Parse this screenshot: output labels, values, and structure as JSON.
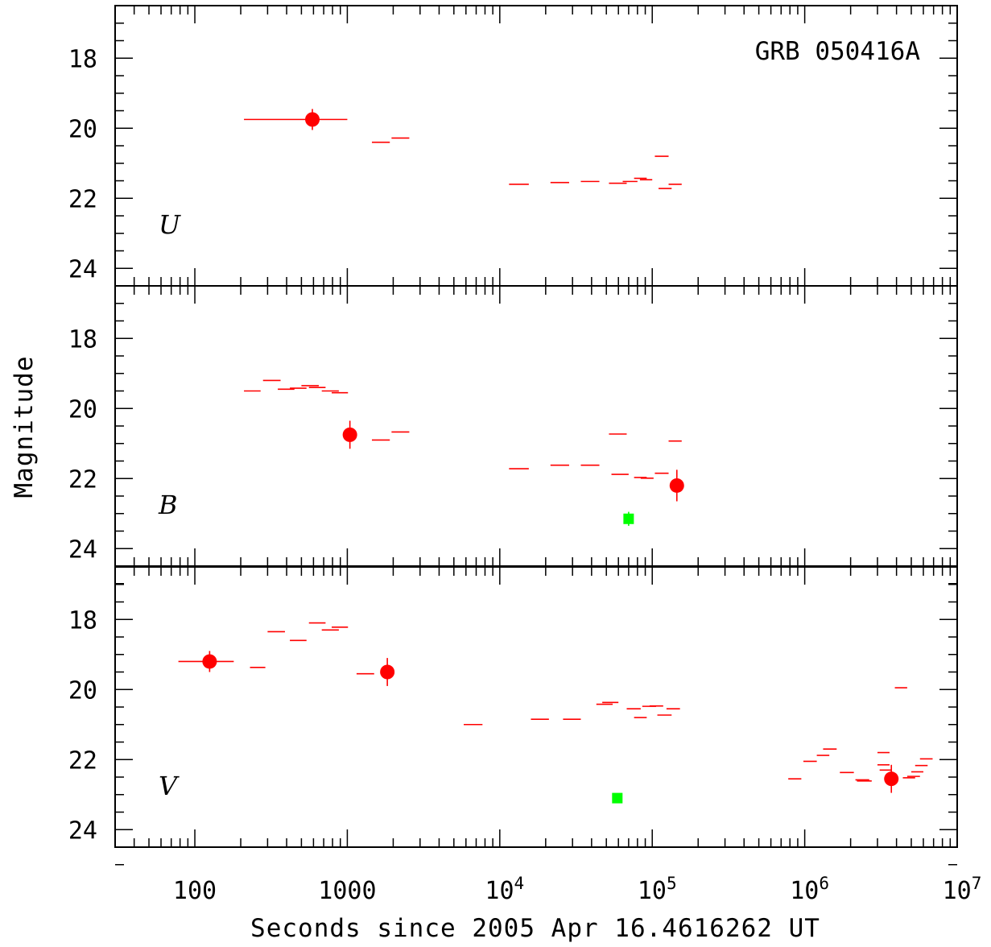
{
  "chart_data": {
    "type": "scatter",
    "title": "GRB 050416A",
    "xlabel": "Seconds since 2005 Apr 16.4616262 UT",
    "ylabel": "Magnitude",
    "x_scale": "log",
    "xlim": [
      30,
      10000000
    ],
    "x_tick_labels": [
      {
        "value": 100,
        "label": "100"
      },
      {
        "value": 1000,
        "label": "1000"
      },
      {
        "value": 10000,
        "base": "10",
        "exp": "4"
      },
      {
        "value": 100000,
        "base": "10",
        "exp": "5"
      },
      {
        "value": 1000000,
        "base": "10",
        "exp": "6"
      },
      {
        "value": 10000000,
        "base": "10",
        "exp": "7"
      }
    ],
    "y_inverted": true,
    "ylim": [
      16.5,
      24.5
    ],
    "y_ticks": [
      18,
      20,
      22,
      24
    ],
    "colors": {
      "upper_limit": "#ff0000",
      "detection": "#ff0000",
      "reference": "#00ff00",
      "axes": "#000000"
    },
    "panels": [
      {
        "band": "U",
        "detections": [
          {
            "t": 590,
            "t_lo": 210,
            "t_hi": 1000,
            "mag": 19.75,
            "err": 0.3
          }
        ],
        "upper_limits": [
          {
            "t_lo": 1450,
            "t_hi": 1900,
            "mag": 20.4
          },
          {
            "t_lo": 1950,
            "t_hi": 2550,
            "mag": 20.28
          },
          {
            "t_lo": 11500,
            "t_hi": 15500,
            "mag": 21.6
          },
          {
            "t_lo": 21500,
            "t_hi": 28500,
            "mag": 21.55
          },
          {
            "t_lo": 34000,
            "t_hi": 45000,
            "mag": 21.52
          },
          {
            "t_lo": 52000,
            "t_hi": 68000,
            "mag": 21.57
          },
          {
            "t_lo": 64000,
            "t_hi": 80000,
            "mag": 21.52
          },
          {
            "t_lo": 76000,
            "t_hi": 92000,
            "mag": 21.43
          },
          {
            "t_lo": 83000,
            "t_hi": 100000,
            "mag": 21.47
          },
          {
            "t_lo": 104000,
            "t_hi": 128000,
            "mag": 20.8
          },
          {
            "t_lo": 110000,
            "t_hi": 134000,
            "mag": 21.72
          },
          {
            "t_lo": 128000,
            "t_hi": 156000,
            "mag": 21.6
          }
        ],
        "references": []
      },
      {
        "band": "B",
        "detections": [
          {
            "t": 1040,
            "t_lo": 1040,
            "t_hi": 1040,
            "mag": 20.75,
            "err": 0.4
          },
          {
            "t": 145000,
            "t_lo": 145000,
            "t_hi": 145000,
            "mag": 22.2,
            "err": 0.45
          }
        ],
        "upper_limits": [
          {
            "t_lo": 210,
            "t_hi": 270,
            "mag": 19.5
          },
          {
            "t_lo": 280,
            "t_hi": 365,
            "mag": 19.2
          },
          {
            "t_lo": 350,
            "t_hi": 450,
            "mag": 19.45
          },
          {
            "t_lo": 420,
            "t_hi": 540,
            "mag": 19.42
          },
          {
            "t_lo": 500,
            "t_hi": 650,
            "mag": 19.35
          },
          {
            "t_lo": 560,
            "t_hi": 720,
            "mag": 19.4
          },
          {
            "t_lo": 680,
            "t_hi": 880,
            "mag": 19.5
          },
          {
            "t_lo": 790,
            "t_hi": 1010,
            "mag": 19.55
          },
          {
            "t_lo": 1450,
            "t_hi": 1900,
            "mag": 20.9
          },
          {
            "t_lo": 1950,
            "t_hi": 2550,
            "mag": 20.67
          },
          {
            "t_lo": 11500,
            "t_hi": 15500,
            "mag": 21.72
          },
          {
            "t_lo": 21500,
            "t_hi": 28500,
            "mag": 21.62
          },
          {
            "t_lo": 34000,
            "t_hi": 45000,
            "mag": 21.62
          },
          {
            "t_lo": 52000,
            "t_hi": 68000,
            "mag": 20.73
          },
          {
            "t_lo": 54000,
            "t_hi": 70000,
            "mag": 21.88
          },
          {
            "t_lo": 76000,
            "t_hi": 92000,
            "mag": 21.97
          },
          {
            "t_lo": 84000,
            "t_hi": 102000,
            "mag": 21.99
          },
          {
            "t_lo": 104000,
            "t_hi": 128000,
            "mag": 21.85
          },
          {
            "t_lo": 128000,
            "t_hi": 156000,
            "mag": 20.93
          }
        ],
        "references": [
          {
            "t": 70000,
            "mag": 23.15,
            "err": 0.2
          }
        ]
      },
      {
        "band": "V",
        "detections": [
          {
            "t": 125,
            "t_lo": 78,
            "t_hi": 180,
            "mag": 19.2,
            "err": 0.3
          },
          {
            "t": 1830,
            "t_lo": 1830,
            "t_hi": 1830,
            "mag": 19.5,
            "err": 0.4
          },
          {
            "t": 3700000,
            "t_lo": 3700000,
            "t_hi": 3700000,
            "mag": 22.55,
            "err": 0.4
          }
        ],
        "upper_limits": [
          {
            "t_lo": 230,
            "t_hi": 290,
            "mag": 19.37
          },
          {
            "t_lo": 300,
            "t_hi": 390,
            "mag": 18.35
          },
          {
            "t_lo": 420,
            "t_hi": 540,
            "mag": 18.6
          },
          {
            "t_lo": 560,
            "t_hi": 720,
            "mag": 18.1
          },
          {
            "t_lo": 680,
            "t_hi": 880,
            "mag": 18.3
          },
          {
            "t_lo": 790,
            "t_hi": 1010,
            "mag": 18.22
          },
          {
            "t_lo": 1150,
            "t_hi": 1500,
            "mag": 19.55
          },
          {
            "t_lo": 5800,
            "t_hi": 7700,
            "mag": 21.0
          },
          {
            "t_lo": 16000,
            "t_hi": 21000,
            "mag": 20.85
          },
          {
            "t_lo": 26000,
            "t_hi": 34000,
            "mag": 20.85
          },
          {
            "t_lo": 43000,
            "t_hi": 55000,
            "mag": 20.42
          },
          {
            "t_lo": 47000,
            "t_hi": 60000,
            "mag": 20.37
          },
          {
            "t_lo": 68000,
            "t_hi": 84000,
            "mag": 20.55
          },
          {
            "t_lo": 76000,
            "t_hi": 92000,
            "mag": 20.8
          },
          {
            "t_lo": 86000,
            "t_hi": 106000,
            "mag": 20.48
          },
          {
            "t_lo": 96000,
            "t_hi": 118000,
            "mag": 20.47
          },
          {
            "t_lo": 108000,
            "t_hi": 134000,
            "mag": 20.73
          },
          {
            "t_lo": 124000,
            "t_hi": 152000,
            "mag": 20.55
          },
          {
            "t_lo": 780000,
            "t_hi": 950000,
            "mag": 22.55
          },
          {
            "t_lo": 980000,
            "t_hi": 1200000,
            "mag": 22.05
          },
          {
            "t_lo": 1200000,
            "t_hi": 1450000,
            "mag": 21.88
          },
          {
            "t_lo": 1320000,
            "t_hi": 1620000,
            "mag": 21.7
          },
          {
            "t_lo": 1700000,
            "t_hi": 2100000,
            "mag": 22.37
          },
          {
            "t_lo": 2150000,
            "t_hi": 2650000,
            "mag": 22.58
          },
          {
            "t_lo": 2200000,
            "t_hi": 2750000,
            "mag": 22.61
          },
          {
            "t_lo": 3000000,
            "t_hi": 3600000,
            "mag": 21.8
          },
          {
            "t_lo": 3000000,
            "t_hi": 3600000,
            "mag": 22.15
          },
          {
            "t_lo": 3100000,
            "t_hi": 3700000,
            "mag": 22.3
          },
          {
            "t_lo": 3900000,
            "t_hi": 4700000,
            "mag": 19.95
          },
          {
            "t_lo": 4400000,
            "t_hi": 5300000,
            "mag": 22.52
          },
          {
            "t_lo": 4700000,
            "t_hi": 5700000,
            "mag": 22.48
          },
          {
            "t_lo": 5000000,
            "t_hi": 6000000,
            "mag": 22.35
          },
          {
            "t_lo": 5300000,
            "t_hi": 6400000,
            "mag": 22.17
          },
          {
            "t_lo": 5700000,
            "t_hi": 6900000,
            "mag": 21.98
          }
        ],
        "references": [
          {
            "t": 59000,
            "mag": 23.1,
            "err": 0.0
          }
        ]
      }
    ]
  }
}
